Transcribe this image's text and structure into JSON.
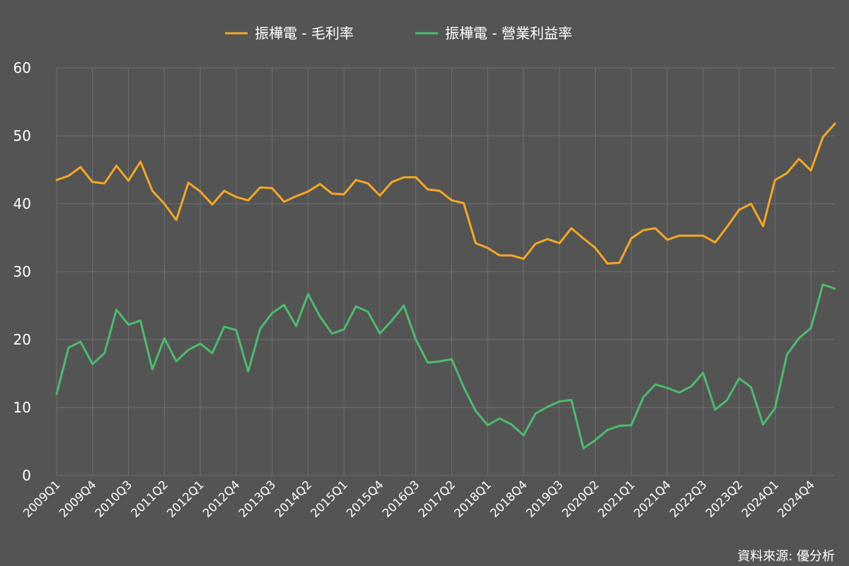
{
  "chart_data": {
    "type": "line",
    "title": "",
    "xlabel": "",
    "ylabel": "",
    "ylim": [
      0,
      60
    ],
    "yticks": [
      0,
      10,
      20,
      30,
      40,
      50,
      60
    ],
    "grid": true,
    "legend": "top-center",
    "x": [
      "2009Q1",
      "2009Q2",
      "2009Q3",
      "2009Q4",
      "2010Q1",
      "2010Q2",
      "2010Q3",
      "2010Q4",
      "2011Q1",
      "2011Q2",
      "2011Q3",
      "2011Q4",
      "2012Q1",
      "2012Q2",
      "2012Q3",
      "2012Q4",
      "2013Q1",
      "2013Q2",
      "2013Q3",
      "2013Q4",
      "2014Q1",
      "2014Q2",
      "2014Q3",
      "2014Q4",
      "2015Q1",
      "2015Q2",
      "2015Q3",
      "2015Q4",
      "2016Q1",
      "2016Q2",
      "2016Q3",
      "2016Q4",
      "2017Q1",
      "2017Q2",
      "2017Q3",
      "2017Q4",
      "2018Q1",
      "2018Q2",
      "2018Q3",
      "2018Q4",
      "2019Q1",
      "2019Q2",
      "2019Q3",
      "2019Q4",
      "2020Q1",
      "2020Q2",
      "2020Q3",
      "2020Q4",
      "2021Q1",
      "2021Q2",
      "2021Q3",
      "2021Q4",
      "2022Q1",
      "2022Q2",
      "2022Q3",
      "2022Q4",
      "2023Q1",
      "2023Q2",
      "2023Q3",
      "2023Q4",
      "2024Q1",
      "2024Q2",
      "2024Q3",
      "2024Q4",
      "2025Q1",
      "2025Q2"
    ],
    "xtick_labels": [
      "2009Q1",
      "2009Q4",
      "2010Q3",
      "2011Q2",
      "2012Q1",
      "2012Q4",
      "2013Q3",
      "2014Q2",
      "2015Q1",
      "2015Q4",
      "2016Q3",
      "2017Q2",
      "2018Q1",
      "2018Q4",
      "2019Q3",
      "2020Q2",
      "2021Q1",
      "2021Q4",
      "2022Q3",
      "2023Q2",
      "2024Q1",
      "2024Q4"
    ],
    "series": [
      {
        "name": "振樺電 - 毛利率",
        "color": "#f5a623",
        "values": [
          43.5,
          44.1,
          45.4,
          43.2,
          43.0,
          45.6,
          43.4,
          46.2,
          41.9,
          40.0,
          37.6,
          43.1,
          41.8,
          39.9,
          41.9,
          41.0,
          40.5,
          42.4,
          42.3,
          40.3,
          41.1,
          41.8,
          42.9,
          41.5,
          41.4,
          43.5,
          43.0,
          41.2,
          43.2,
          43.9,
          43.9,
          42.1,
          41.9,
          40.5,
          40.1,
          34.2,
          33.5,
          32.4,
          32.4,
          31.9,
          34.1,
          34.8,
          34.2,
          36.4,
          34.9,
          33.5,
          31.2,
          31.3,
          34.9,
          36.1,
          36.4,
          34.7,
          35.3,
          35.3,
          35.3,
          34.3,
          36.6,
          39.1,
          40.0,
          36.7,
          43.5,
          44.5,
          46.6,
          44.9,
          49.8,
          51.8
        ]
      },
      {
        "name": "振樺電 - 營業利益率",
        "color": "#4cbb6c",
        "values": [
          12.0,
          18.8,
          19.7,
          16.4,
          18.0,
          24.4,
          22.2,
          22.8,
          15.6,
          20.2,
          16.8,
          18.5,
          19.4,
          18.0,
          21.9,
          21.4,
          15.3,
          21.6,
          23.9,
          25.1,
          22.0,
          26.7,
          23.4,
          20.9,
          21.5,
          24.9,
          24.1,
          20.9,
          22.8,
          25.0,
          20.0,
          16.6,
          16.8,
          17.1,
          13.0,
          9.5,
          7.4,
          8.4,
          7.5,
          5.9,
          9.1,
          10.1,
          10.9,
          11.1,
          4.0,
          5.2,
          6.7,
          7.3,
          7.4,
          11.5,
          13.4,
          12.9,
          12.2,
          13.1,
          15.1,
          9.7,
          11.1,
          14.3,
          13.0,
          7.5,
          9.9,
          17.8,
          20.2,
          21.7,
          28.1,
          27.5
        ]
      }
    ]
  },
  "source": "資料來源: 優分析"
}
